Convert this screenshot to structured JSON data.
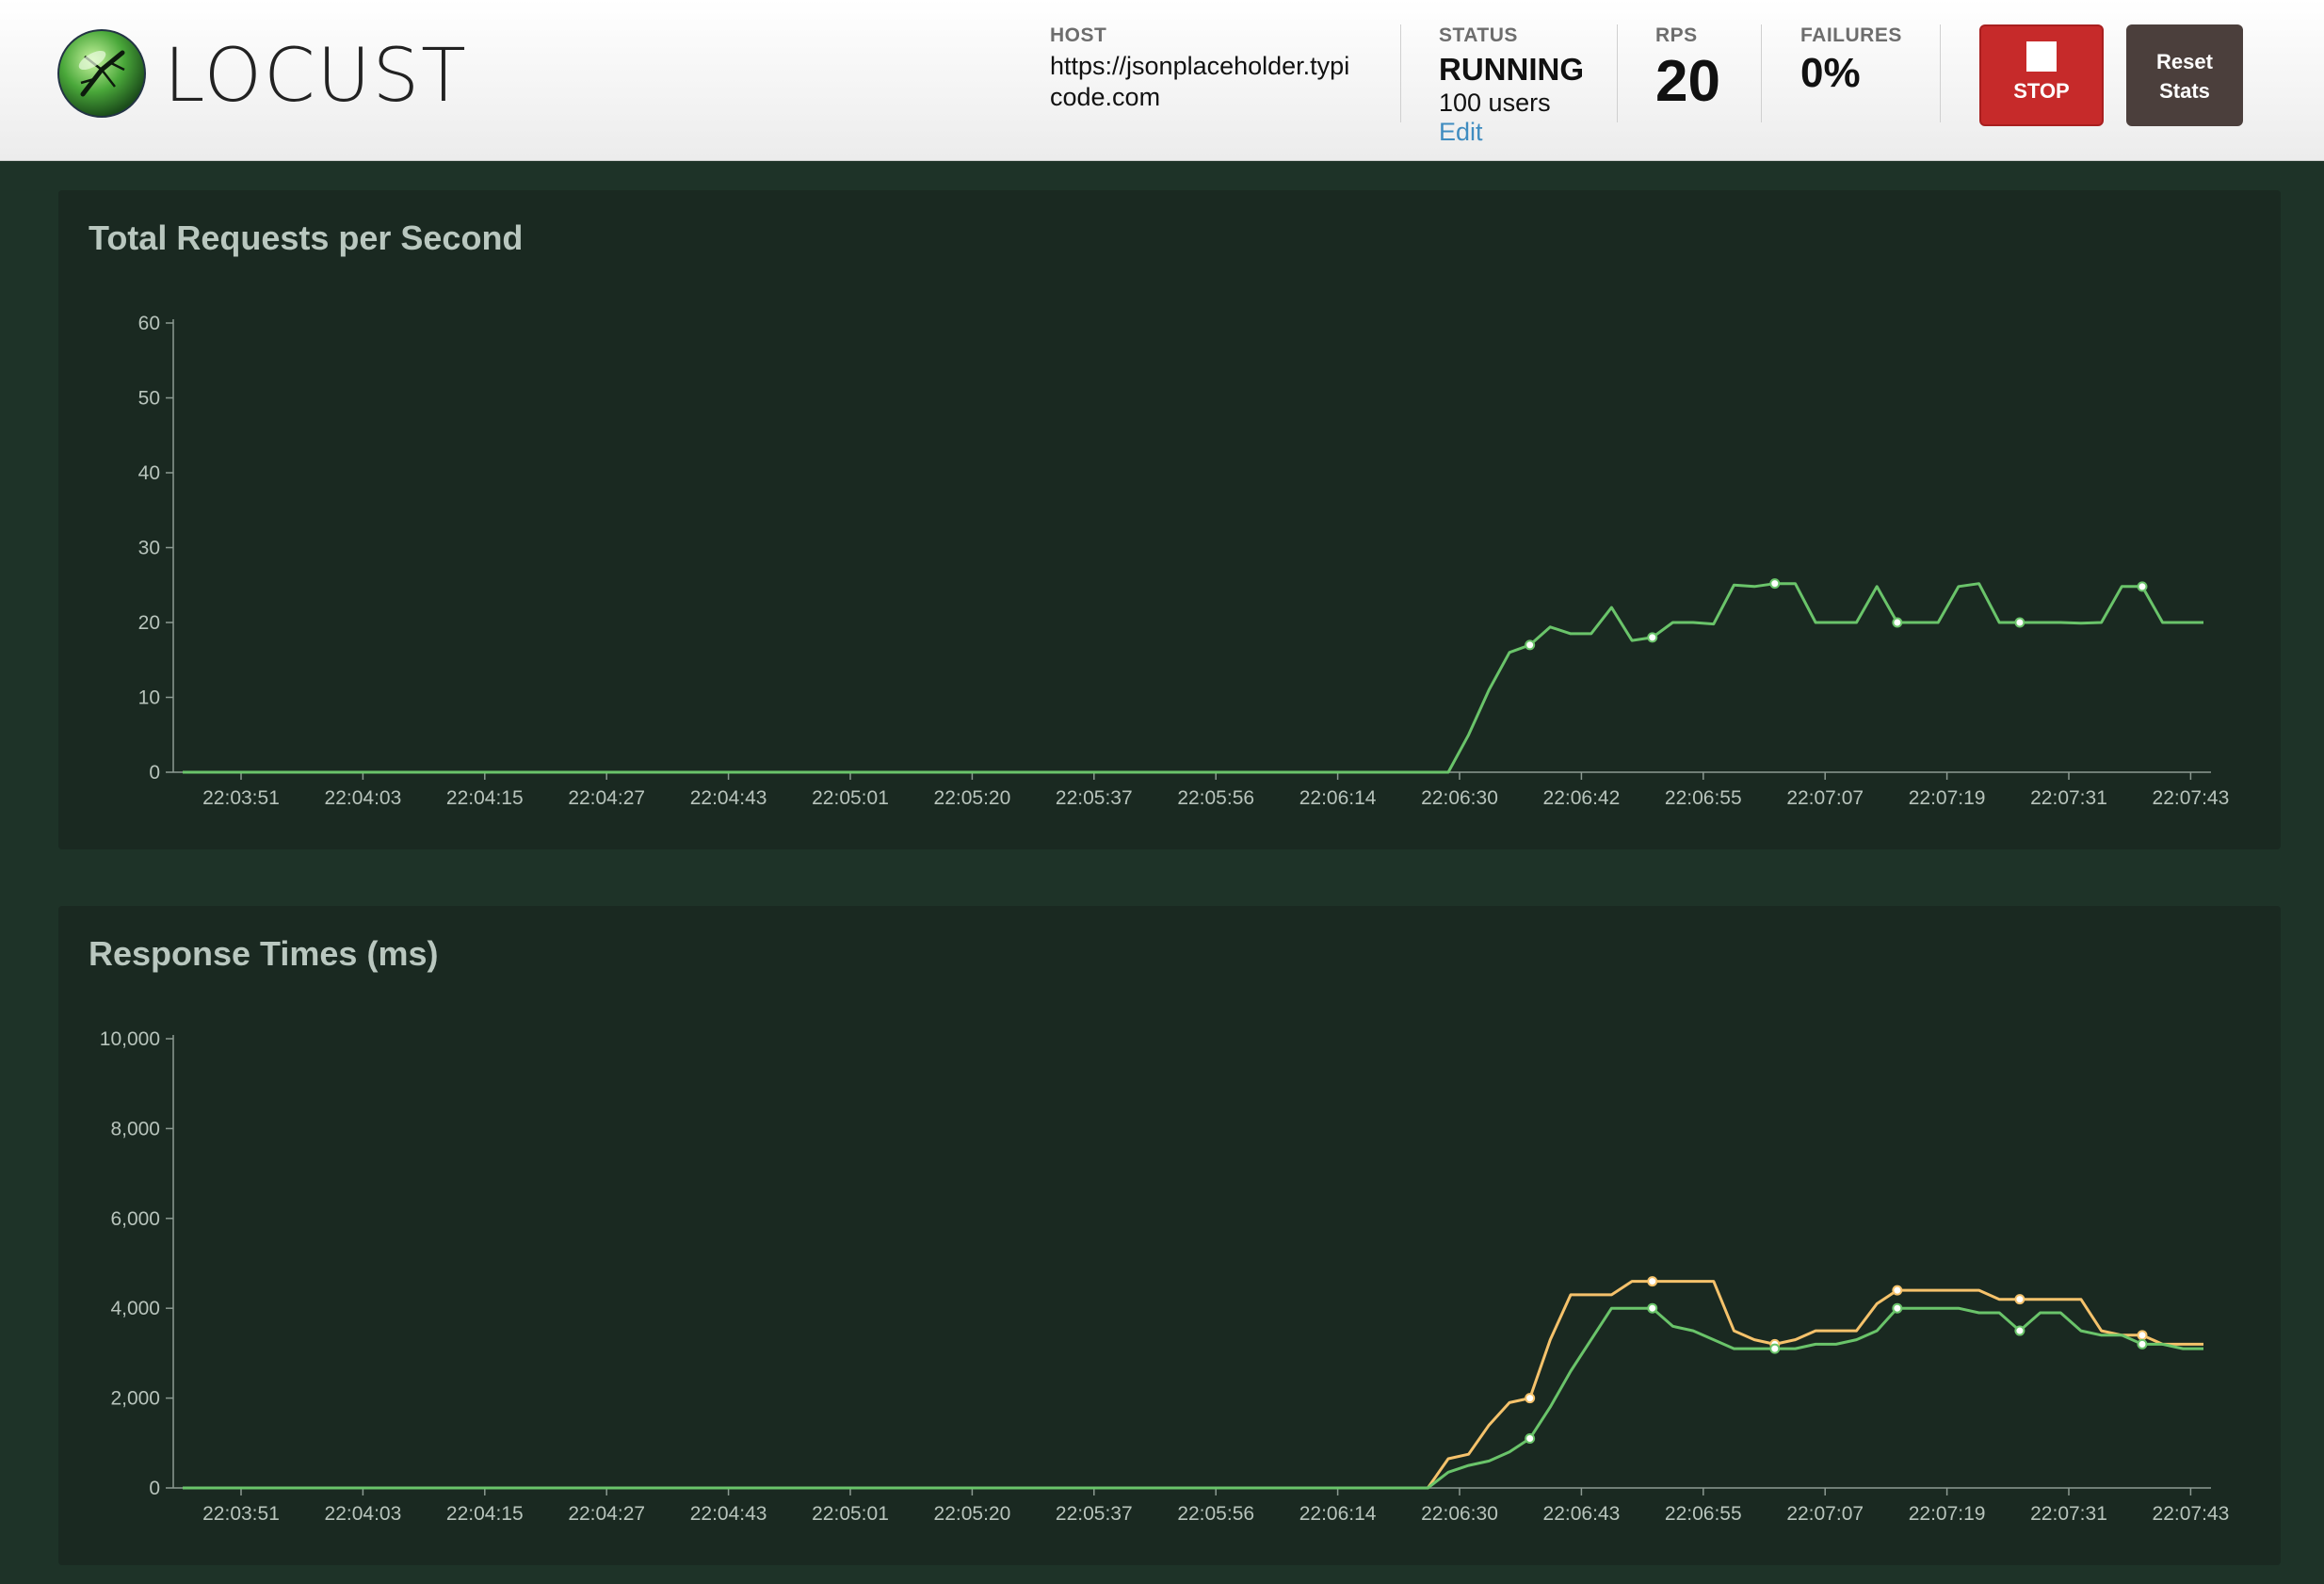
{
  "header": {
    "logo_text": "LOCUST",
    "host": {
      "label": "HOST",
      "line1": "https://jsonplaceholder.typi",
      "line2": "code.com"
    },
    "status": {
      "label": "STATUS",
      "value": "RUNNING",
      "users": "100 users",
      "edit": "Edit"
    },
    "rps": {
      "label": "RPS",
      "value": "20"
    },
    "failures": {
      "label": "FAILURES",
      "value": "0%"
    },
    "stop_button": {
      "label": "STOP",
      "color": "#c62a2a"
    },
    "reset_button": {
      "line1": "Reset",
      "line2": "Stats"
    }
  },
  "charts": {
    "rps": {
      "title": "Total Requests per Second"
    },
    "response": {
      "title": "Response Times (ms)"
    }
  },
  "chart_data": [
    {
      "type": "line",
      "title": "Total Requests per Second",
      "ylim": [
        0,
        60
      ],
      "yticks": [
        "0",
        "10",
        "20",
        "30",
        "40",
        "50",
        "60"
      ],
      "xtick_labels": [
        "22:03:51",
        "22:04:03",
        "22:04:15",
        "22:04:27",
        "22:04:43",
        "22:05:01",
        "22:05:20",
        "22:05:37",
        "22:05:56",
        "22:06:14",
        "22:06:30",
        "22:06:42",
        "22:06:55",
        "22:07:07",
        "22:07:19",
        "22:07:31",
        "22:07:43"
      ],
      "series": [
        {
          "color": "#6ac46a",
          "values": [
            0,
            0,
            0,
            0,
            0,
            0,
            0,
            0,
            0,
            0,
            0,
            0,
            0,
            0,
            0,
            0,
            0,
            0,
            0,
            0,
            0,
            0,
            0,
            0,
            0,
            0,
            0,
            0,
            0,
            0,
            0,
            0,
            0,
            0,
            0,
            0,
            0,
            0,
            0,
            0,
            0,
            0,
            0,
            0,
            0,
            0,
            0,
            0,
            0,
            0,
            0,
            0,
            0,
            0,
            0,
            0,
            0,
            0,
            0,
            0,
            0,
            0,
            0,
            5,
            11,
            16,
            17,
            19.4,
            18.5,
            18.5,
            22,
            17.6,
            18,
            20,
            20,
            19.8,
            25,
            24.8,
            25.2,
            25.2,
            20,
            20,
            20,
            24.8,
            20,
            20,
            20,
            24.8,
            25.2,
            20,
            20,
            20,
            20,
            19.9,
            20,
            24.8,
            24.8,
            20,
            20,
            20
          ],
          "markers": [
            66,
            72,
            78,
            84,
            90,
            96
          ]
        }
      ]
    },
    {
      "type": "line",
      "title": "Response Times (ms)",
      "ylim": [
        0,
        10000
      ],
      "yticks": [
        "0",
        "2,000",
        "4,000",
        "6,000",
        "8,000",
        "10,000"
      ],
      "xtick_labels": [
        "22:03:51",
        "22:04:03",
        "22:04:15",
        "22:04:27",
        "22:04:43",
        "22:05:01",
        "22:05:20",
        "22:05:37",
        "22:05:56",
        "22:06:14",
        "22:06:30",
        "22:06:43",
        "22:06:55",
        "22:07:07",
        "22:07:19",
        "22:07:31",
        "22:07:43"
      ],
      "series": [
        {
          "color": "#f5c26b",
          "values": [
            0,
            0,
            0,
            0,
            0,
            0,
            0,
            0,
            0,
            0,
            0,
            0,
            0,
            0,
            0,
            0,
            0,
            0,
            0,
            0,
            0,
            0,
            0,
            0,
            0,
            0,
            0,
            0,
            0,
            0,
            0,
            0,
            0,
            0,
            0,
            0,
            0,
            0,
            0,
            0,
            0,
            0,
            0,
            0,
            0,
            0,
            0,
            0,
            0,
            0,
            0,
            0,
            0,
            0,
            0,
            0,
            0,
            0,
            0,
            0,
            0,
            0,
            650,
            750,
            1400,
            1900,
            2000,
            3300,
            4300,
            4300,
            4300,
            4600,
            4600,
            4600,
            4600,
            4600,
            3500,
            3300,
            3200,
            3300,
            3500,
            3500,
            3500,
            4100,
            4400,
            4400,
            4400,
            4400,
            4400,
            4200,
            4200,
            4200,
            4200,
            4200,
            3500,
            3400,
            3400,
            3200,
            3200,
            3200
          ],
          "markers": [
            66,
            72,
            78,
            84,
            90,
            96
          ]
        },
        {
          "color": "#6ac46a",
          "values": [
            0,
            0,
            0,
            0,
            0,
            0,
            0,
            0,
            0,
            0,
            0,
            0,
            0,
            0,
            0,
            0,
            0,
            0,
            0,
            0,
            0,
            0,
            0,
            0,
            0,
            0,
            0,
            0,
            0,
            0,
            0,
            0,
            0,
            0,
            0,
            0,
            0,
            0,
            0,
            0,
            0,
            0,
            0,
            0,
            0,
            0,
            0,
            0,
            0,
            0,
            0,
            0,
            0,
            0,
            0,
            0,
            0,
            0,
            0,
            0,
            0,
            0,
            350,
            500,
            600,
            800,
            1100,
            1800,
            2600,
            3300,
            4000,
            4000,
            4000,
            3600,
            3500,
            3300,
            3100,
            3100,
            3100,
            3100,
            3200,
            3200,
            3300,
            3500,
            4000,
            4000,
            4000,
            4000,
            3900,
            3900,
            3500,
            3900,
            3900,
            3500,
            3400,
            3400,
            3200,
            3200,
            3100,
            3100
          ],
          "markers": [
            66,
            72,
            78,
            84,
            90,
            96
          ]
        }
      ]
    }
  ]
}
